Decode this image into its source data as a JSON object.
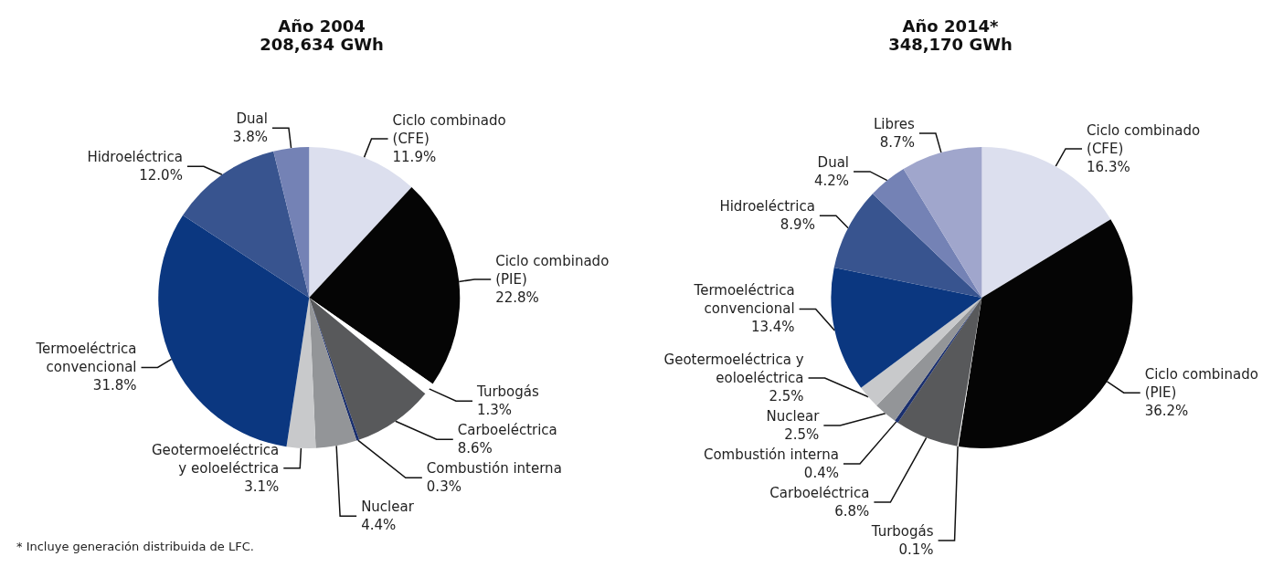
{
  "chart_data": [
    {
      "type": "pie",
      "title": "Año 2004",
      "subtitle": "208,634 GWh",
      "legend": false,
      "categories": [
        "Ciclo combinado\n(CFE)",
        "Ciclo combinado\n(PIE)",
        "Turbogás",
        "Carboeléctrica",
        "Combustión interna",
        "Nuclear",
        "Geotermoeléctrica\ny eoloeléctrica",
        "Termoeléctrica\nconvencional",
        "Hidroeléctrica",
        "Dual"
      ],
      "values": [
        11.9,
        22.8,
        1.3,
        8.6,
        0.3,
        4.4,
        3.1,
        31.8,
        12.0,
        3.8
      ],
      "value_labels": [
        "11.9%",
        "22.8%",
        "1.3%",
        "8.6%",
        "0.3%",
        "4.4%",
        "3.1%",
        "31.8%",
        "12.0%",
        "3.8%"
      ],
      "colors": [
        "#dcdfee",
        "#050505",
        "#ffffff",
        "#58595b",
        "#1a2f6e",
        "#939598",
        "#c8c9cb",
        "#0b3780",
        "#38548f",
        "#7482b5"
      ],
      "annotations": [
        "* Incluye generación distribuida de LFC."
      ]
    },
    {
      "type": "pie",
      "title": "Año 2014*",
      "subtitle": "348,170 GWh",
      "legend": false,
      "categories": [
        "Ciclo combinado\n(CFE)",
        "Ciclo combinado\n(PIE)",
        "Turbogás",
        "Carboeléctrica",
        "Combustión interna",
        "Nuclear",
        "Geotermoeléctrica y\neoloeléctrica",
        "Termoeléctrica\nconvencional",
        "Hidroeléctrica",
        "Dual",
        "Libres"
      ],
      "values": [
        16.3,
        36.2,
        0.1,
        6.8,
        0.4,
        2.5,
        2.5,
        13.4,
        8.9,
        4.2,
        8.7
      ],
      "value_labels": [
        "16.3%",
        "36.2%",
        "0.1%",
        "6.8%",
        "0.4%",
        "2.5%",
        "2.5%",
        "13.4%",
        "8.9%",
        "4.2%",
        "8.7%"
      ],
      "colors": [
        "#dcdfee",
        "#050505",
        "#ffffff",
        "#58595b",
        "#1a2f6e",
        "#939598",
        "#c8c9cb",
        "#0b3780",
        "#38548f",
        "#7482b5",
        "#a0a6cc"
      ]
    }
  ]
}
